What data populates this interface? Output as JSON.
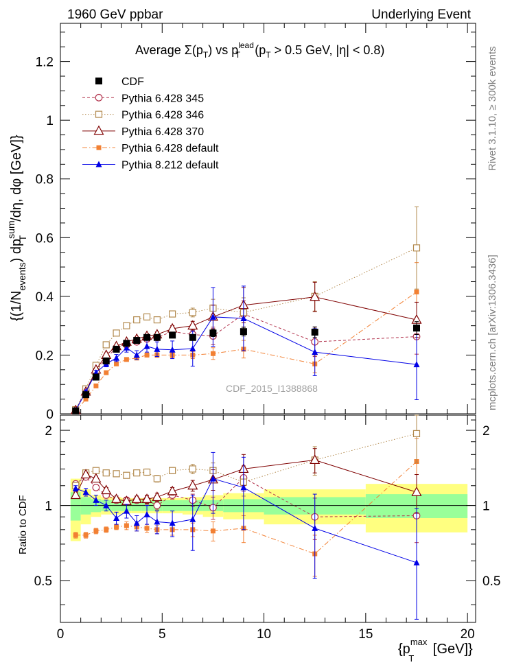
{
  "header": {
    "left": "1960 GeV ppbar",
    "right": "Underlying Event",
    "side_top": "Rivet 3.1.10, ≥ 300k events",
    "side_bottom": "mcplots.cern.ch [arXiv:1306.3436]",
    "watermark": "CDF_2015_I1388868"
  },
  "colors": {
    "cdf": "#000000",
    "p345": "#b2334d",
    "p346": "#b2894d",
    "p370": "#7f0000",
    "pdefault": "#f28033",
    "p8": "#0000e6",
    "band_inner": "#99ff99",
    "band_outer": "#ffff80"
  },
  "chart_data": {
    "type": "scatter",
    "title": "Average Σ(pT) vs pT lead (pT > 0.5 GeV, |η| < 0.8)",
    "title_parts": {
      "a": "Average  Σ(p",
      "a_sub": "T",
      "b": ") vs p",
      "b_sup": "lead",
      "b_sub": "T",
      "c": " (p",
      "c_sub": "T",
      "d": " > 0.5 GeV, |η| < 0.8)"
    },
    "xlabel": "{p_T^max [GeV]}",
    "xlabel_parts": {
      "a": "{p",
      "a_sup": "max",
      "a_sub": "T",
      "b": " [GeV]}"
    },
    "ylabel": "{(1/N_events) dp_T^sum/dη, dφ [GeV]}",
    "ylabel_parts": {
      "a": "{(1/N",
      "a_sub": "events",
      "b": ") dp",
      "b_sup": "sum",
      "b_sub": "T",
      "c": "/dη, dφ [GeV]}"
    },
    "ratio_ylabel": "Ratio to CDF",
    "xlim": [
      0,
      20.4
    ],
    "ylim": [
      0,
      1.33
    ],
    "ratio_ylim": [
      0.34,
      2.3
    ],
    "x_ticks": [
      0,
      5,
      10,
      15,
      20
    ],
    "y_ticks": [
      0,
      0.2,
      0.4,
      0.6,
      0.8,
      1,
      1.2
    ],
    "y_tick_labels": [
      "0",
      "0.2",
      "0.4",
      "0.6",
      "0.8",
      "1",
      "1.2"
    ],
    "ratio_ticks": [
      0.5,
      1,
      2
    ],
    "ratio_tick_labels": [
      "0.5",
      "1",
      "2"
    ],
    "x": [
      0.75,
      1.25,
      1.75,
      2.25,
      2.75,
      3.25,
      3.75,
      4.25,
      4.75,
      5.5,
      6.5,
      7.5,
      9.0,
      12.5,
      17.5
    ],
    "bin_edges": [
      0.5,
      1.0,
      1.5,
      2.0,
      2.5,
      3.0,
      3.5,
      4.0,
      4.5,
      5.0,
      6.0,
      7.0,
      8.0,
      10.0,
      15.0,
      20.0
    ],
    "band_inner": [
      0.13,
      0.08,
      0.06,
      0.05,
      0.05,
      0.05,
      0.05,
      0.05,
      0.05,
      0.05,
      0.05,
      0.05,
      0.06,
      0.08,
      0.11
    ],
    "band_outer": [
      0.28,
      0.16,
      0.1,
      0.08,
      0.08,
      0.07,
      0.07,
      0.07,
      0.07,
      0.07,
      0.08,
      0.1,
      0.12,
      0.16,
      0.22
    ],
    "series": [
      {
        "name": "CDF",
        "values": [
          0.01,
          0.065,
          0.125,
          0.18,
          0.22,
          0.24,
          0.25,
          0.26,
          0.26,
          0.268,
          0.26,
          0.275,
          0.28,
          0.278,
          0.292
        ],
        "ratio": [
          1,
          1,
          1,
          1,
          1,
          1,
          1,
          1,
          1,
          1,
          1,
          1,
          1,
          1,
          1
        ],
        "errors": [
          0.002,
          0.004,
          0.005,
          0.006,
          0.007,
          0.008,
          0.008,
          0.008,
          0.009,
          0.009,
          0.01,
          0.012,
          0.015,
          0.018,
          0.022
        ]
      },
      {
        "name": "Pythia 6.428 345",
        "values": [
          0.012,
          0.08,
          0.145,
          0.19,
          0.225,
          0.235,
          0.245,
          0.255,
          0.26,
          0.28,
          0.27,
          0.265,
          0.34,
          0.245,
          0.263
        ],
        "ratio": [
          1.22,
          1.3,
          1.18,
          1.1,
          1.05,
          1.05,
          1.05,
          1.05,
          1.0,
          1.1,
          1.05,
          0.98,
          1.29,
          0.9,
          0.91
        ],
        "errors": [
          0.003,
          0.004,
          0.005,
          0.005,
          0.006,
          0.006,
          0.007,
          0.008,
          0.009,
          0.01,
          0.015,
          0.03,
          0.045,
          0.05,
          0.06
        ],
        "ratio_errors": [
          0.03,
          0.03,
          0.03,
          0.03,
          0.03,
          0.03,
          0.03,
          0.04,
          0.04,
          0.04,
          0.06,
          0.1,
          0.15,
          0.17,
          0.2
        ]
      },
      {
        "name": "Pythia 6.428 346",
        "values": [
          0.014,
          0.085,
          0.165,
          0.235,
          0.275,
          0.3,
          0.32,
          0.33,
          0.32,
          0.34,
          0.345,
          0.36,
          0.345,
          0.4,
          0.565
        ],
        "ratio": [
          1.2,
          1.35,
          1.38,
          1.35,
          1.34,
          1.32,
          1.35,
          1.36,
          1.28,
          1.38,
          1.4,
          1.38,
          1.24,
          1.52,
          1.94
        ],
        "errors": [
          0.003,
          0.004,
          0.005,
          0.005,
          0.006,
          0.006,
          0.007,
          0.008,
          0.009,
          0.01,
          0.015,
          0.03,
          0.05,
          0.05,
          0.14
        ],
        "ratio_errors": [
          0.03,
          0.03,
          0.03,
          0.03,
          0.03,
          0.03,
          0.03,
          0.04,
          0.04,
          0.04,
          0.06,
          0.1,
          0.15,
          0.2,
          0.45
        ]
      },
      {
        "name": "Pythia 6.428 370",
        "values": [
          0.012,
          0.075,
          0.15,
          0.2,
          0.23,
          0.245,
          0.255,
          0.265,
          0.27,
          0.29,
          0.3,
          0.33,
          0.37,
          0.398,
          0.32
        ],
        "ratio": [
          1.1,
          1.33,
          1.28,
          1.15,
          1.06,
          1.04,
          1.06,
          1.06,
          1.08,
          1.14,
          1.2,
          1.27,
          1.4,
          1.52,
          1.13
        ],
        "errors": [
          0.003,
          0.004,
          0.005,
          0.005,
          0.006,
          0.006,
          0.007,
          0.008,
          0.009,
          0.01,
          0.015,
          0.04,
          0.06,
          0.05,
          0.06
        ],
        "ratio_errors": [
          0.03,
          0.03,
          0.03,
          0.03,
          0.03,
          0.03,
          0.03,
          0.04,
          0.04,
          0.04,
          0.06,
          0.12,
          0.2,
          0.17,
          0.2
        ]
      },
      {
        "name": "Pythia 6.428 default",
        "values": [
          0.008,
          0.05,
          0.095,
          0.14,
          0.17,
          0.185,
          0.19,
          0.2,
          0.2,
          0.2,
          0.2,
          0.205,
          0.22,
          0.17,
          0.415
        ],
        "ratio": [
          0.76,
          0.76,
          0.79,
          0.8,
          0.82,
          0.83,
          0.82,
          0.81,
          0.8,
          0.8,
          0.8,
          0.79,
          0.81,
          0.64,
          1.5
        ],
        "errors": [
          0.002,
          0.003,
          0.004,
          0.005,
          0.005,
          0.006,
          0.006,
          0.007,
          0.008,
          0.009,
          0.012,
          0.02,
          0.03,
          0.03,
          0.1
        ],
        "ratio_errors": [
          0.02,
          0.02,
          0.02,
          0.02,
          0.02,
          0.03,
          0.03,
          0.03,
          0.03,
          0.04,
          0.05,
          0.07,
          0.1,
          0.12,
          0.35
        ]
      },
      {
        "name": "Pythia 8.212 default",
        "values": [
          0.012,
          0.075,
          0.14,
          0.17,
          0.19,
          0.225,
          0.2,
          0.23,
          0.22,
          0.218,
          0.222,
          0.33,
          0.325,
          0.21,
          0.168
        ],
        "ratio": [
          1.17,
          1.13,
          1.05,
          1.0,
          0.89,
          0.95,
          0.85,
          0.92,
          0.86,
          0.85,
          0.88,
          1.28,
          1.18,
          0.81,
          0.59
        ],
        "errors": [
          0.003,
          0.005,
          0.008,
          0.01,
          0.012,
          0.015,
          0.015,
          0.02,
          0.025,
          0.03,
          0.06,
          0.1,
          0.11,
          0.08,
          0.12
        ],
        "ratio_errors": [
          0.03,
          0.04,
          0.05,
          0.05,
          0.05,
          0.06,
          0.06,
          0.08,
          0.09,
          0.1,
          0.22,
          0.35,
          0.38,
          0.3,
          0.38
        ]
      }
    ]
  }
}
